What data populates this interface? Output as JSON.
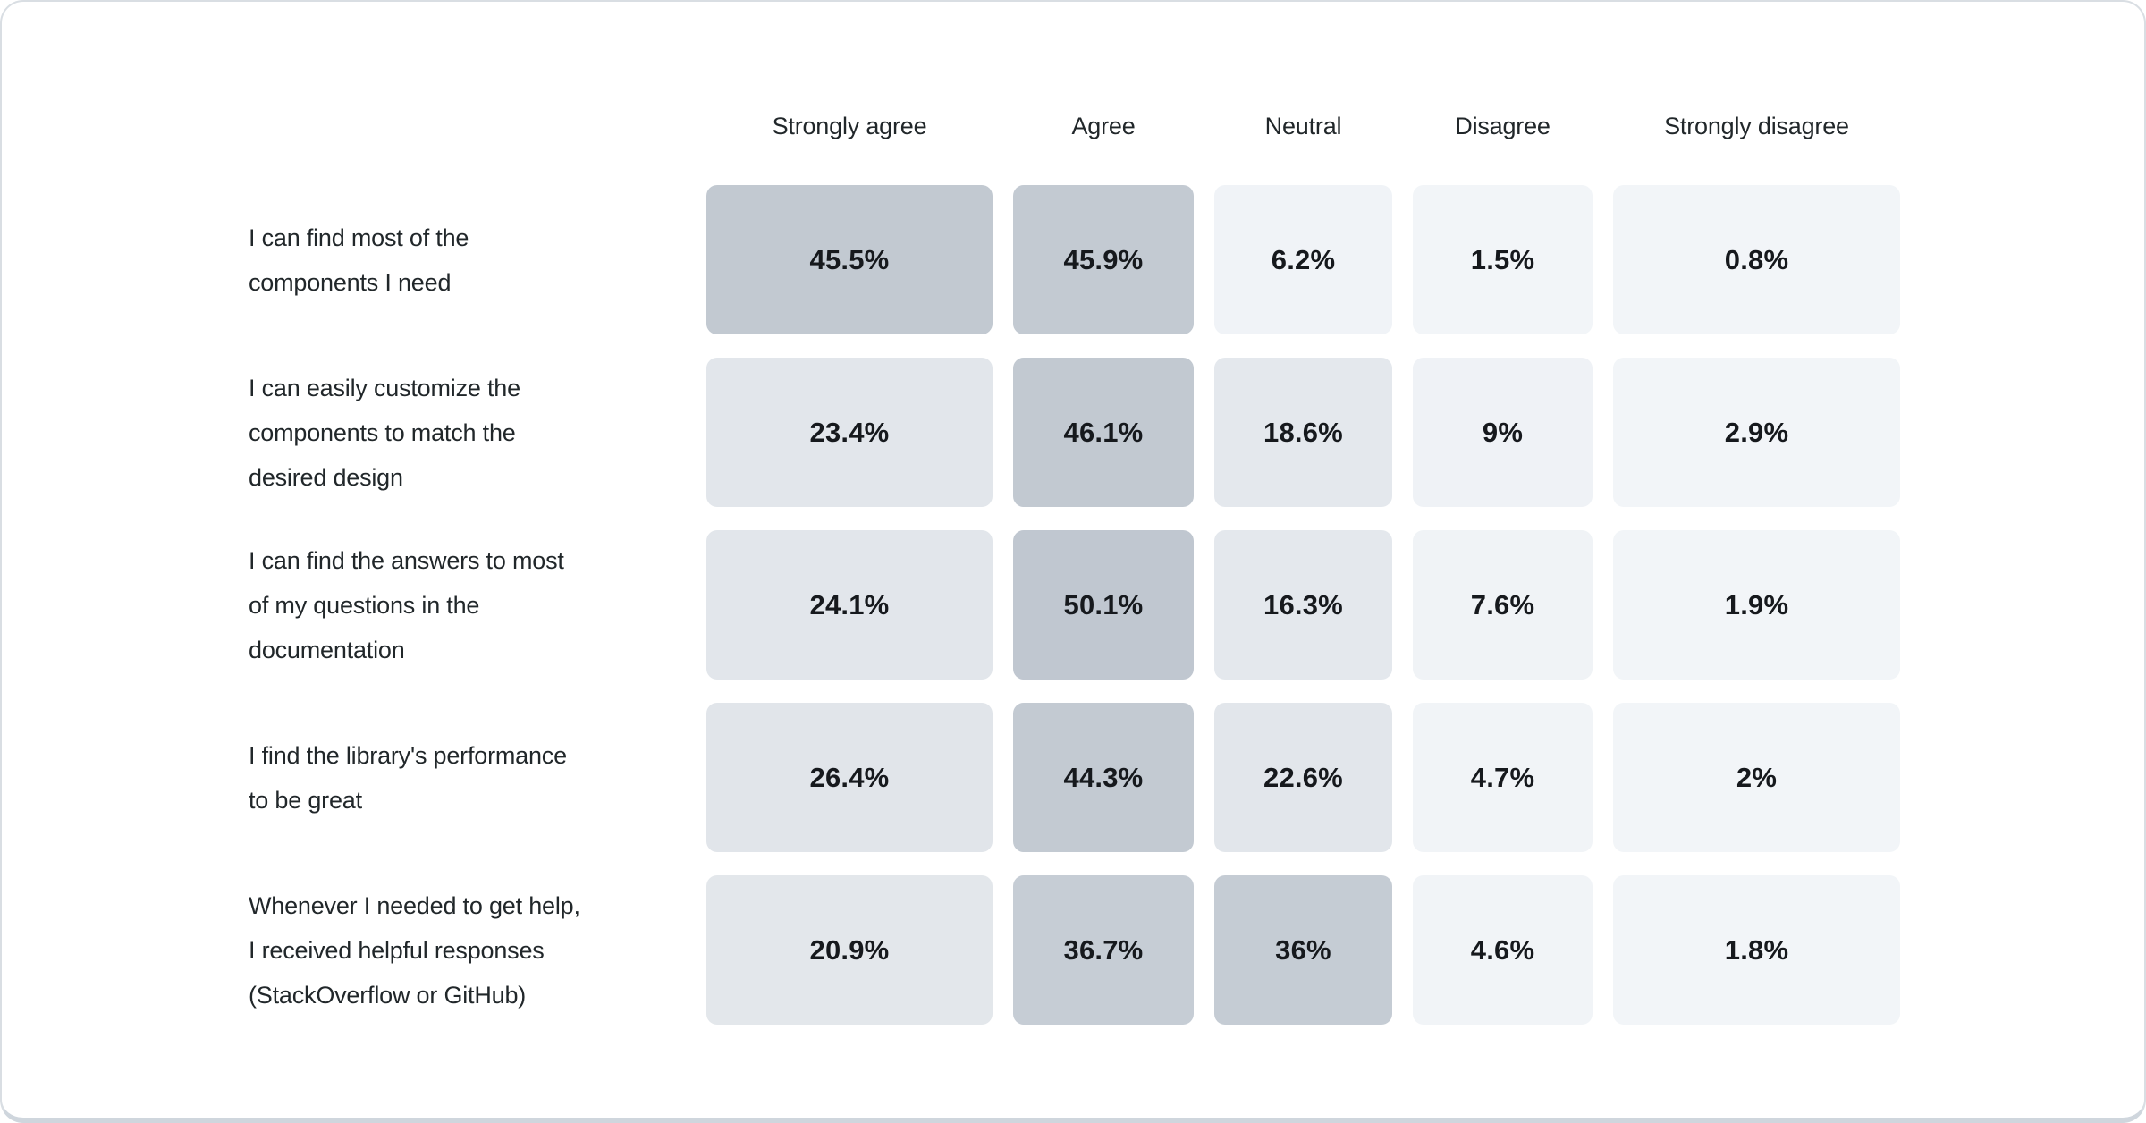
{
  "page": {
    "background": "#ffffff",
    "card_border_color": "#d9dee3",
    "card_bottom_edge_color": "#cfd6dd",
    "header_text_color": "#21272a",
    "question_text_color": "#21272a",
    "value_text_color": "#16191d"
  },
  "chart_data": {
    "type": "heatmap",
    "value_unit": "%",
    "columns": [
      "Strongly agree",
      "Agree",
      "Neutral",
      "Disagree",
      "Strongly disagree"
    ],
    "color_scale": {
      "low_value_color": "#f2f5f8",
      "high_value_color": "#c0c7d0",
      "encoding": "darker cell = higher percentage"
    },
    "rows": [
      {
        "label": "I can find most of the components I need",
        "label_lines": [
          "I can find most of the",
          "components I need"
        ],
        "values": [
          45.5,
          45.9,
          6.2,
          1.5,
          0.8
        ],
        "display_values": [
          "45.5%",
          "45.9%",
          "6.2%",
          "1.5%",
          "0.8%"
        ],
        "cell_colors": [
          "#c2c9d1",
          "#c3cad2",
          "#f0f3f7",
          "#f2f5f8",
          "#f2f5f8"
        ]
      },
      {
        "label": "I can easily customize the components to match the desired design",
        "label_lines": [
          "I can easily customize the",
          "components to match the",
          "desired design"
        ],
        "values": [
          23.4,
          46.1,
          18.6,
          9,
          2.9
        ],
        "display_values": [
          "23.4%",
          "46.1%",
          "18.6%",
          "9%",
          "2.9%"
        ],
        "cell_colors": [
          "#e2e6eb",
          "#c2c9d1",
          "#e4e8ed",
          "#eff2f6",
          "#f2f5f8"
        ]
      },
      {
        "label": "I can find the answers to most of my questions in the documentation",
        "label_lines": [
          "I can find the answers to most",
          "of my questions in the",
          "documentation"
        ],
        "values": [
          24.1,
          50.1,
          16.3,
          7.6,
          1.9
        ],
        "display_values": [
          "24.1%",
          "50.1%",
          "16.3%",
          "7.6%",
          "1.9%"
        ],
        "cell_colors": [
          "#e2e6eb",
          "#c0c7d0",
          "#e4e8ed",
          "#f0f3f6",
          "#f2f5f8"
        ]
      },
      {
        "label": "I find the library's performance to be great",
        "label_lines": [
          "I find the library's performance",
          "to be great"
        ],
        "values": [
          26.4,
          44.3,
          22.6,
          4.7,
          2
        ],
        "display_values": [
          "26.4%",
          "44.3%",
          "22.6%",
          "4.7%",
          "2%"
        ],
        "cell_colors": [
          "#e1e5ea",
          "#c3cad2",
          "#e2e6eb",
          "#f1f4f7",
          "#f2f5f8"
        ]
      },
      {
        "label": "Whenever I needed to get help, I received helpful responses (StackOverflow or GitHub)",
        "label_lines": [
          "Whenever I needed to get help,",
          "I received helpful responses",
          "(StackOverflow or GitHub)"
        ],
        "values": [
          20.9,
          36.7,
          36,
          4.6,
          1.8
        ],
        "display_values": [
          "20.9%",
          "36.7%",
          "36%",
          "4.6%",
          "1.8%"
        ],
        "cell_colors": [
          "#e3e7eb",
          "#c6cdd5",
          "#c5ccd4",
          "#f1f4f7",
          "#f2f5f8"
        ]
      }
    ]
  }
}
